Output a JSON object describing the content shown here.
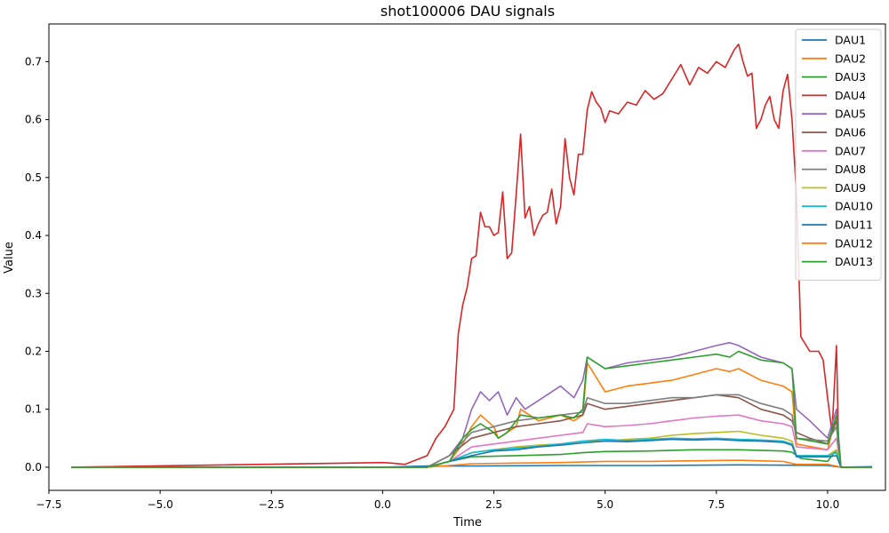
{
  "chart_data": {
    "type": "line",
    "title": "shot100006 DAU signals",
    "xlabel": "Time",
    "ylabel": "Value",
    "xlim": [
      -7.5,
      11.3
    ],
    "ylim": [
      -0.04,
      0.765
    ],
    "xticks": [
      -7.5,
      -5.0,
      -2.5,
      0.0,
      2.5,
      5.0,
      7.5,
      10.0
    ],
    "xtick_labels": [
      "−7.5",
      "−5.0",
      "−2.5",
      "0.0",
      "2.5",
      "5.0",
      "7.5",
      "10.0"
    ],
    "yticks": [
      0.0,
      0.1,
      0.2,
      0.3,
      0.4,
      0.5,
      0.6,
      0.7
    ],
    "ytick_labels": [
      "0.0",
      "0.1",
      "0.2",
      "0.3",
      "0.4",
      "0.5",
      "0.6",
      "0.7"
    ],
    "grid": false,
    "legend_position": "upper right",
    "series": [
      {
        "name": "DAU1",
        "color": "#1f77b4",
        "x": [
          -7,
          0,
          1,
          2,
          4,
          6,
          8,
          10,
          10.3,
          11
        ],
        "y": [
          0.0,
          0.0,
          0.002,
          0.002,
          0.003,
          0.003,
          0.004,
          0.003,
          0.0,
          0.001
        ]
      },
      {
        "name": "DAU2",
        "color": "#ff7f0e",
        "x": [
          -7,
          1,
          1.5,
          1.8,
          2,
          2.2,
          2.5,
          2.6,
          2.8,
          3,
          3.1,
          3.5,
          4,
          4.3,
          4.5,
          4.6,
          5,
          5.5,
          6,
          6.5,
          7,
          7.5,
          7.8,
          8,
          8.5,
          9,
          9.2,
          9.3,
          10,
          10.2,
          10.3,
          11
        ],
        "y": [
          0.0,
          0.0,
          0.01,
          0.04,
          0.07,
          0.09,
          0.07,
          0.05,
          0.06,
          0.07,
          0.1,
          0.08,
          0.09,
          0.08,
          0.09,
          0.18,
          0.13,
          0.14,
          0.145,
          0.15,
          0.16,
          0.17,
          0.165,
          0.17,
          0.15,
          0.14,
          0.13,
          0.04,
          0.03,
          0.09,
          0.0,
          0.0
        ]
      },
      {
        "name": "DAU3",
        "color": "#2ca02c",
        "x": [
          -7,
          1,
          1.5,
          2,
          3,
          4,
          4.5,
          5,
          6,
          7,
          8,
          9,
          9.2,
          9.4,
          10,
          10.2,
          10.3,
          11
        ],
        "y": [
          0.0,
          0.0,
          0.01,
          0.018,
          0.02,
          0.022,
          0.025,
          0.027,
          0.028,
          0.03,
          0.03,
          0.028,
          0.026,
          0.015,
          0.01,
          0.03,
          0.0,
          0.0
        ]
      },
      {
        "name": "DAU4",
        "color": "#d62728",
        "x": [
          -7,
          0,
          0.2,
          0.5,
          1,
          1.2,
          1.4,
          1.6,
          1.7,
          1.8,
          1.9,
          2.0,
          2.1,
          2.2,
          2.3,
          2.4,
          2.5,
          2.6,
          2.7,
          2.8,
          2.9,
          3.0,
          3.1,
          3.2,
          3.3,
          3.4,
          3.5,
          3.6,
          3.7,
          3.8,
          3.9,
          4.0,
          4.1,
          4.2,
          4.3,
          4.4,
          4.5,
          4.6,
          4.7,
          4.8,
          4.9,
          5.0,
          5.1,
          5.3,
          5.5,
          5.7,
          5.9,
          6.1,
          6.3,
          6.5,
          6.7,
          6.9,
          7.1,
          7.3,
          7.5,
          7.7,
          7.9,
          8.0,
          8.1,
          8.2,
          8.3,
          8.4,
          8.5,
          8.6,
          8.7,
          8.8,
          8.9,
          9.0,
          9.1,
          9.2,
          9.3,
          9.4,
          9.6,
          9.8,
          9.9,
          10.0,
          10.1,
          10.2,
          10.25,
          10.3,
          10.5,
          11
        ],
        "y": [
          0.0,
          0.008,
          0.007,
          0.005,
          0.02,
          0.05,
          0.07,
          0.1,
          0.23,
          0.28,
          0.31,
          0.36,
          0.365,
          0.44,
          0.415,
          0.415,
          0.4,
          0.405,
          0.475,
          0.36,
          0.37,
          0.47,
          0.575,
          0.43,
          0.45,
          0.4,
          0.42,
          0.435,
          0.44,
          0.48,
          0.42,
          0.45,
          0.567,
          0.5,
          0.47,
          0.54,
          0.54,
          0.617,
          0.648,
          0.63,
          0.62,
          0.595,
          0.615,
          0.61,
          0.63,
          0.625,
          0.65,
          0.635,
          0.645,
          0.67,
          0.695,
          0.66,
          0.69,
          0.68,
          0.7,
          0.69,
          0.72,
          0.73,
          0.7,
          0.675,
          0.68,
          0.585,
          0.6,
          0.625,
          0.64,
          0.6,
          0.585,
          0.65,
          0.678,
          0.6,
          0.47,
          0.225,
          0.2,
          0.2,
          0.185,
          0.12,
          0.06,
          0.21,
          0.03,
          0.0,
          0.0,
          0.0
        ]
      },
      {
        "name": "DAU5",
        "color": "#9467bd",
        "x": [
          -7,
          1,
          1.5,
          1.8,
          2,
          2.2,
          2.4,
          2.6,
          2.8,
          3,
          3.2,
          3.5,
          3.8,
          4,
          4.3,
          4.5,
          4.6,
          5,
          5.5,
          6,
          6.5,
          7,
          7.5,
          7.8,
          8,
          8.5,
          9,
          9.2,
          9.3,
          9.6,
          10,
          10.2,
          10.3,
          11
        ],
        "y": [
          0.0,
          0.0,
          0.02,
          0.05,
          0.1,
          0.13,
          0.115,
          0.13,
          0.09,
          0.12,
          0.1,
          0.115,
          0.13,
          0.14,
          0.12,
          0.15,
          0.19,
          0.17,
          0.18,
          0.185,
          0.19,
          0.2,
          0.21,
          0.215,
          0.21,
          0.19,
          0.18,
          0.17,
          0.1,
          0.08,
          0.05,
          0.1,
          0.0,
          0.0
        ]
      },
      {
        "name": "DAU6",
        "color": "#8c564b",
        "x": [
          -7,
          1,
          1.5,
          2,
          2.5,
          3,
          3.5,
          4,
          4.5,
          4.6,
          5,
          5.5,
          6,
          6.5,
          7,
          7.5,
          8,
          8.5,
          9,
          9.2,
          9.3,
          9.6,
          10,
          10.2,
          10.3,
          11
        ],
        "y": [
          0.0,
          0.0,
          0.02,
          0.05,
          0.06,
          0.07,
          0.075,
          0.08,
          0.09,
          0.11,
          0.1,
          0.105,
          0.11,
          0.115,
          0.12,
          0.125,
          0.12,
          0.1,
          0.09,
          0.08,
          0.06,
          0.05,
          0.04,
          0.08,
          0.0,
          0.0
        ]
      },
      {
        "name": "DAU7",
        "color": "#e377c2",
        "x": [
          -7,
          1,
          1.5,
          2,
          2.5,
          3,
          3.5,
          4,
          4.5,
          4.6,
          5,
          5.5,
          6,
          6.5,
          7,
          7.5,
          8,
          8.5,
          9,
          9.2,
          9.3,
          10,
          10.2,
          10.3,
          11
        ],
        "y": [
          0.0,
          0.0,
          0.01,
          0.035,
          0.04,
          0.045,
          0.05,
          0.055,
          0.06,
          0.075,
          0.07,
          0.072,
          0.075,
          0.08,
          0.085,
          0.088,
          0.09,
          0.08,
          0.075,
          0.07,
          0.035,
          0.03,
          0.05,
          0.0,
          0.0
        ]
      },
      {
        "name": "DAU8",
        "color": "#7f7f7f",
        "x": [
          -7,
          1,
          1.5,
          2,
          2.5,
          3,
          3.5,
          4,
          4.5,
          4.6,
          5,
          5.5,
          6,
          6.5,
          7,
          7.5,
          8,
          8.5,
          9,
          9.2,
          9.3,
          10,
          10.2,
          10.3,
          11
        ],
        "y": [
          0.0,
          0.0,
          0.02,
          0.06,
          0.07,
          0.08,
          0.085,
          0.09,
          0.095,
          0.12,
          0.11,
          0.11,
          0.115,
          0.12,
          0.12,
          0.125,
          0.125,
          0.11,
          0.1,
          0.09,
          0.05,
          0.045,
          0.07,
          0.0,
          0.0
        ]
      },
      {
        "name": "DAU9",
        "color": "#bcbd22",
        "x": [
          -7,
          1,
          1.5,
          2,
          2.5,
          3,
          3.5,
          4,
          4.5,
          5,
          5.5,
          6,
          6.5,
          7,
          7.5,
          8,
          8.5,
          9,
          9.2,
          9.3,
          10,
          10.2,
          10.3,
          11
        ],
        "y": [
          0.0,
          0.0,
          0.01,
          0.025,
          0.03,
          0.035,
          0.038,
          0.04,
          0.045,
          0.045,
          0.048,
          0.05,
          0.055,
          0.058,
          0.06,
          0.062,
          0.055,
          0.05,
          0.045,
          0.02,
          0.02,
          0.03,
          0.0,
          0.0
        ]
      },
      {
        "name": "DAU10",
        "color": "#17becf",
        "x": [
          -7,
          1,
          1.5,
          2,
          2.5,
          3,
          3.5,
          4,
          4.5,
          5,
          5.5,
          6,
          6.5,
          7,
          7.5,
          8,
          8.5,
          9,
          9.2,
          9.3,
          10,
          10.2,
          10.3,
          11
        ],
        "y": [
          0.0,
          0.0,
          0.01,
          0.025,
          0.03,
          0.033,
          0.036,
          0.04,
          0.045,
          0.048,
          0.046,
          0.048,
          0.05,
          0.049,
          0.05,
          0.048,
          0.047,
          0.045,
          0.04,
          0.02,
          0.02,
          0.025,
          0.0,
          0.0
        ]
      },
      {
        "name": "DAU11",
        "color": "#1f77b4",
        "x": [
          -7,
          1,
          1.5,
          2,
          2.5,
          3,
          3.5,
          4,
          4.5,
          5,
          5.5,
          6,
          6.5,
          7,
          7.5,
          8,
          8.5,
          9,
          9.2,
          9.3,
          10,
          10.2,
          10.3,
          11
        ],
        "y": [
          0.0,
          0.0,
          0.01,
          0.02,
          0.028,
          0.03,
          0.035,
          0.038,
          0.042,
          0.045,
          0.044,
          0.046,
          0.048,
          0.047,
          0.048,
          0.046,
          0.045,
          0.043,
          0.038,
          0.018,
          0.018,
          0.02,
          0.0,
          0.0
        ]
      },
      {
        "name": "DAU12",
        "color": "#ff7f0e",
        "x": [
          -7,
          1,
          1.5,
          2,
          3,
          4,
          5,
          6,
          7,
          8,
          9,
          9.3,
          10,
          10.3,
          11
        ],
        "y": [
          0.0,
          0.0,
          0.003,
          0.006,
          0.007,
          0.008,
          0.01,
          0.01,
          0.011,
          0.012,
          0.01,
          0.005,
          0.005,
          0.0,
          0.0
        ]
      },
      {
        "name": "DAU13",
        "color": "#2ca02c",
        "x": [
          -7,
          1,
          1.5,
          1.8,
          2,
          2.2,
          2.5,
          2.6,
          2.8,
          3,
          3.1,
          3.5,
          4,
          4.3,
          4.5,
          4.6,
          5,
          5.5,
          6,
          6.5,
          7,
          7.5,
          7.8,
          8,
          8.5,
          9,
          9.2,
          9.3,
          10,
          10.2,
          10.3,
          11
        ],
        "y": [
          0.0,
          0.0,
          0.01,
          0.05,
          0.065,
          0.075,
          0.06,
          0.05,
          0.06,
          0.08,
          0.09,
          0.085,
          0.09,
          0.085,
          0.1,
          0.19,
          0.17,
          0.175,
          0.18,
          0.185,
          0.19,
          0.195,
          0.19,
          0.2,
          0.185,
          0.18,
          0.17,
          0.05,
          0.04,
          0.09,
          0.0,
          0.0
        ]
      }
    ]
  }
}
